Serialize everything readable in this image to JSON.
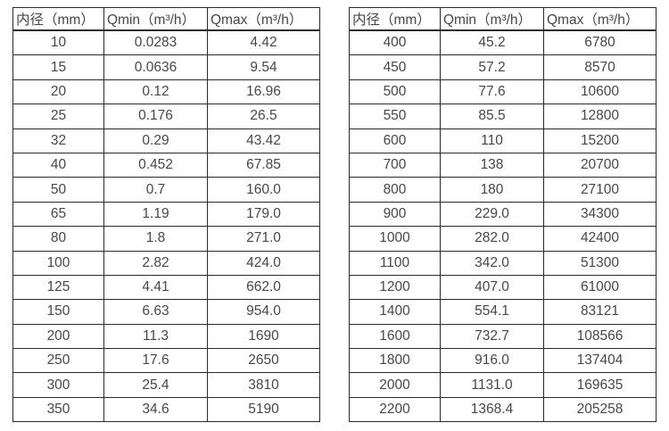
{
  "page": {
    "background_color": "#ffffff",
    "text_color": "#474747",
    "border_color": "#2b2b2b"
  },
  "tables": [
    {
      "name": "flow-table-small-diameters",
      "headers": [
        "内径（mm）",
        "Qmin（m³/h）",
        "Qmax（m³/h）"
      ],
      "rows": [
        [
          "10",
          "0.0283",
          "4.42"
        ],
        [
          "15",
          "0.0636",
          "9.54"
        ],
        [
          "20",
          "0.12",
          "16.96"
        ],
        [
          "25",
          "0.176",
          "26.5"
        ],
        [
          "32",
          "0.29",
          "43.42"
        ],
        [
          "40",
          "0.452",
          "67.85"
        ],
        [
          "50",
          "0.7",
          "160.0"
        ],
        [
          "65",
          "1.19",
          "179.0"
        ],
        [
          "80",
          "1.8",
          "271.0"
        ],
        [
          "100",
          "2.82",
          "424.0"
        ],
        [
          "125",
          "4.41",
          "662.0"
        ],
        [
          "150",
          "6.63",
          "954.0"
        ],
        [
          "200",
          "11.3",
          "1690"
        ],
        [
          "250",
          "17.6",
          "2650"
        ],
        [
          "300",
          "25.4",
          "3810"
        ],
        [
          "350",
          "34.6",
          "5190"
        ]
      ]
    },
    {
      "name": "flow-table-large-diameters",
      "headers": [
        "内径（mm）",
        "Qmin（m³/h）",
        "Qmax（m³/h）"
      ],
      "rows": [
        [
          "400",
          "45.2",
          "6780"
        ],
        [
          "450",
          "57.2",
          "8570"
        ],
        [
          "500",
          "77.6",
          "10600"
        ],
        [
          "550",
          "85.5",
          "12800"
        ],
        [
          "600",
          "110",
          "15200"
        ],
        [
          "700",
          "138",
          "20700"
        ],
        [
          "800",
          "180",
          "27100"
        ],
        [
          "900",
          "229.0",
          "34300"
        ],
        [
          "1000",
          "282.0",
          "42400"
        ],
        [
          "1100",
          "342.0",
          "51300"
        ],
        [
          "1200",
          "407.0",
          "61000"
        ],
        [
          "1400",
          "554.1",
          "83121"
        ],
        [
          "1600",
          "732.7",
          "108566"
        ],
        [
          "1800",
          "916.0",
          "137404"
        ],
        [
          "2000",
          "1131.0",
          "169635"
        ],
        [
          "2200",
          "1368.4",
          "205258"
        ]
      ]
    }
  ]
}
